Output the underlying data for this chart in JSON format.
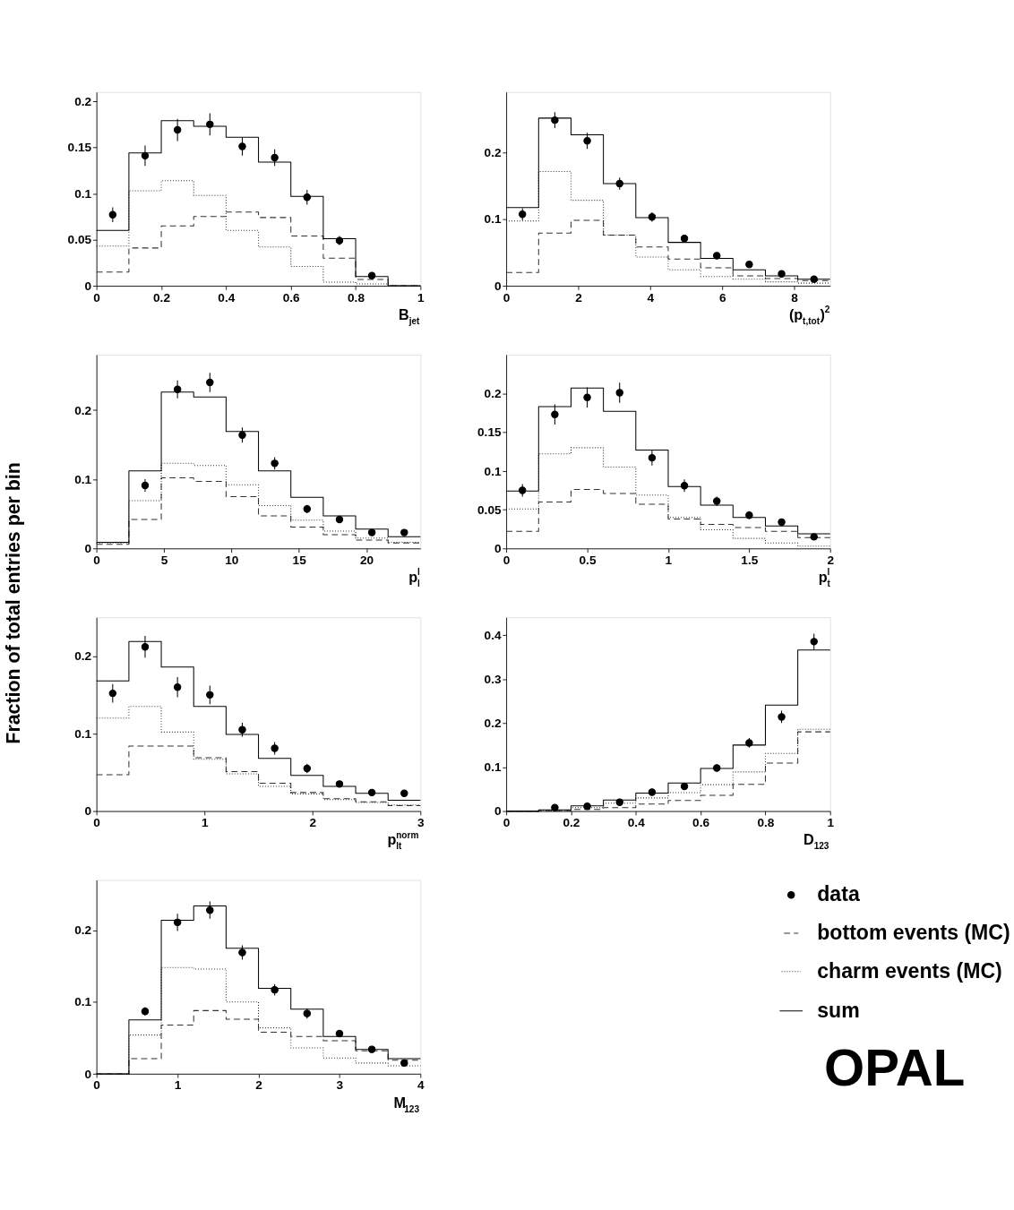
{
  "chart_data": [
    {
      "type": "histogram",
      "xlabel": "B$_{jet}$",
      "bins": [
        0,
        0.1,
        0.2,
        0.3,
        0.4,
        0.5,
        0.6,
        0.7,
        0.8,
        0.9,
        1.0
      ],
      "xlim": [
        0,
        1
      ],
      "xticks": [
        0,
        0.2,
        0.4,
        0.6,
        0.8,
        1
      ],
      "ylim": [
        0,
        0.21
      ],
      "yticks": [
        0,
        0.05,
        0.1,
        0.15,
        0.2
      ],
      "series": [
        {
          "type": "histogram",
          "color": "#333333",
          "line_style": "dashed",
          "values": [
            0.015,
            0.041,
            0.065,
            0.075,
            0.08,
            0.074,
            0.054,
            0.03,
            0.007,
            0
          ]
        },
        {
          "type": "histogram",
          "color": "#111111",
          "line_style": "dotted",
          "values": [
            0.043,
            0.103,
            0.114,
            0.098,
            0.06,
            0.042,
            0.021,
            0.004,
            0.002,
            0
          ]
        },
        {
          "type": "histogram",
          "color": "#000000",
          "line_style": "solid",
          "values": [
            0.06,
            0.144,
            0.179,
            0.173,
            0.161,
            0.134,
            0.097,
            0.051,
            0.01,
            0
          ]
        },
        {
          "type": "scatter",
          "color": "#000000",
          "marker": "circle",
          "x": [
            0.05,
            0.15,
            0.25,
            0.35,
            0.45,
            0.55,
            0.65,
            0.75,
            0.85
          ],
          "values": [
            0.077,
            0.141,
            0.169,
            0.175,
            0.151,
            0.139,
            0.096,
            0.049,
            0.011
          ],
          "errors": [
            0.008,
            0.011,
            0.012,
            0.012,
            0.01,
            0.009,
            0.008,
            0.005,
            0.003
          ]
        }
      ]
    },
    {
      "type": "histogram",
      "xlabel": "(p$_{t,tot}$)$^{2}$",
      "bins": [
        0,
        0.9,
        1.8,
        2.7,
        3.6,
        4.5,
        5.4,
        6.3,
        7.2,
        8.1,
        9.0
      ],
      "xlim": [
        0,
        9
      ],
      "xticks": [
        0,
        2,
        4,
        6,
        8
      ],
      "ylim": [
        0,
        0.29
      ],
      "yticks": [
        0,
        0.1,
        0.2
      ],
      "series": [
        {
          "type": "histogram",
          "color": "#333333",
          "line_style": "dashed",
          "values": [
            0.02,
            0.079,
            0.098,
            0.076,
            0.058,
            0.04,
            0.027,
            0.015,
            0.011,
            0.008
          ]
        },
        {
          "type": "histogram",
          "color": "#111111",
          "line_style": "dotted",
          "values": [
            0.097,
            0.171,
            0.128,
            0.076,
            0.043,
            0.024,
            0.014,
            0.01,
            0.006,
            0.004
          ]
        },
        {
          "type": "histogram",
          "color": "#000000",
          "line_style": "solid",
          "values": [
            0.117,
            0.251,
            0.226,
            0.153,
            0.102,
            0.065,
            0.041,
            0.024,
            0.015,
            0.01
          ]
        },
        {
          "type": "scatter",
          "color": "#000000",
          "marker": "circle",
          "x": [
            0.45,
            1.35,
            2.25,
            3.15,
            4.05,
            4.95,
            5.85,
            6.75,
            7.65,
            8.55
          ],
          "values": [
            0.107,
            0.248,
            0.217,
            0.153,
            0.103,
            0.071,
            0.045,
            0.032,
            0.018,
            0.01
          ],
          "errors": [
            0.009,
            0.012,
            0.012,
            0.009,
            0.007,
            0.005,
            0.004,
            0.003,
            0.003,
            0.002
          ]
        }
      ]
    },
    {
      "type": "histogram",
      "ylabel": "Fraction of total entries per bin",
      "xlabel": "p$^{l}$$_{l}$",
      "bins": [
        0,
        2.4,
        4.8,
        7.2,
        9.6,
        12,
        14.4,
        16.8,
        19.2,
        21.6,
        24
      ],
      "xlim": [
        0,
        24
      ],
      "xticks": [
        0,
        5,
        10,
        15,
        20
      ],
      "ylim": [
        0,
        0.28
      ],
      "yticks": [
        0,
        0.1,
        0.2
      ],
      "series": [
        {
          "type": "histogram",
          "color": "#333333",
          "line_style": "dashed",
          "values": [
            0.006,
            0.042,
            0.102,
            0.097,
            0.075,
            0.047,
            0.031,
            0.02,
            0.012,
            0.008
          ]
        },
        {
          "type": "histogram",
          "color": "#111111",
          "line_style": "dotted",
          "values": [
            0.008,
            0.069,
            0.123,
            0.12,
            0.092,
            0.062,
            0.041,
            0.025,
            0.015,
            0.009
          ]
        },
        {
          "type": "histogram",
          "color": "#000000",
          "line_style": "solid",
          "values": [
            0.009,
            0.112,
            0.226,
            0.219,
            0.169,
            0.112,
            0.074,
            0.047,
            0.028,
            0.017
          ]
        },
        {
          "type": "scatter",
          "color": "#000000",
          "marker": "circle",
          "x": [
            3.6,
            6.0,
            8.4,
            10.8,
            13.2,
            15.6,
            18.0,
            20.4,
            22.8
          ],
          "values": [
            0.091,
            0.23,
            0.24,
            0.164,
            0.123,
            0.057,
            0.042,
            0.023,
            0.023
          ],
          "errors": [
            0.009,
            0.013,
            0.014,
            0.011,
            0.009,
            0.006,
            0.004,
            0.003,
            0.003
          ]
        }
      ]
    },
    {
      "type": "histogram",
      "xlabel": "p$^{l}$$_{t}$",
      "bins": [
        0,
        0.2,
        0.4,
        0.6,
        0.8,
        1.0,
        1.2,
        1.4,
        1.6,
        1.8,
        2.0
      ],
      "xlim": [
        0,
        2
      ],
      "xticks": [
        0,
        0.5,
        1,
        1.5,
        2
      ],
      "ylim": [
        0,
        0.25
      ],
      "yticks": [
        0,
        0.05,
        0.1,
        0.15,
        0.2
      ],
      "series": [
        {
          "type": "histogram",
          "color": "#333333",
          "line_style": "dashed",
          "values": [
            0.022,
            0.06,
            0.076,
            0.071,
            0.057,
            0.038,
            0.031,
            0.027,
            0.022,
            0.014
          ]
        },
        {
          "type": "histogram",
          "color": "#111111",
          "line_style": "dotted",
          "values": [
            0.051,
            0.122,
            0.13,
            0.105,
            0.069,
            0.04,
            0.024,
            0.013,
            0.007,
            0.003
          ]
        },
        {
          "type": "histogram",
          "color": "#000000",
          "line_style": "solid",
          "values": [
            0.074,
            0.183,
            0.207,
            0.177,
            0.127,
            0.08,
            0.056,
            0.04,
            0.029,
            0.019
          ]
        },
        {
          "type": "scatter",
          "color": "#000000",
          "marker": "circle",
          "x": [
            0.1,
            0.3,
            0.5,
            0.7,
            0.9,
            1.1,
            1.3,
            1.5,
            1.7,
            1.9
          ],
          "values": [
            0.075,
            0.173,
            0.195,
            0.201,
            0.117,
            0.081,
            0.061,
            0.043,
            0.034,
            0.015
          ],
          "errors": [
            0.008,
            0.013,
            0.013,
            0.013,
            0.01,
            0.008,
            0.006,
            0.005,
            0.004,
            0.003
          ]
        }
      ]
    },
    {
      "type": "histogram",
      "xlabel": "p$^{norm}$$_{lt}$",
      "bins": [
        0,
        0.3,
        0.6,
        0.9,
        1.2,
        1.5,
        1.8,
        2.1,
        2.4,
        2.7,
        3.0
      ],
      "xlim": [
        0,
        3
      ],
      "xticks": [
        0,
        1,
        2,
        3
      ],
      "ylim": [
        0,
        0.25
      ],
      "yticks": [
        0,
        0.1,
        0.2
      ],
      "series": [
        {
          "type": "histogram",
          "color": "#333333",
          "line_style": "dashed",
          "values": [
            0.047,
            0.084,
            0.084,
            0.069,
            0.051,
            0.036,
            0.024,
            0.016,
            0.012,
            0.007
          ]
        },
        {
          "type": "histogram",
          "color": "#111111",
          "line_style": "dotted",
          "values": [
            0.12,
            0.135,
            0.102,
            0.067,
            0.048,
            0.032,
            0.022,
            0.015,
            0.011,
            0.008
          ]
        },
        {
          "type": "histogram",
          "color": "#000000",
          "line_style": "solid",
          "values": [
            0.168,
            0.219,
            0.186,
            0.135,
            0.099,
            0.068,
            0.046,
            0.032,
            0.023,
            0.014
          ]
        },
        {
          "type": "scatter",
          "color": "#000000",
          "marker": "circle",
          "x": [
            0.15,
            0.45,
            0.75,
            1.05,
            1.35,
            1.65,
            1.95,
            2.25,
            2.55,
            2.85
          ],
          "values": [
            0.152,
            0.212,
            0.16,
            0.15,
            0.105,
            0.081,
            0.055,
            0.035,
            0.024,
            0.023
          ],
          "errors": [
            0.012,
            0.014,
            0.013,
            0.012,
            0.009,
            0.008,
            0.006,
            0.004,
            0.003,
            0.003
          ]
        }
      ]
    },
    {
      "type": "histogram",
      "xlabel": "D$_{123}$",
      "bins": [
        0,
        0.1,
        0.2,
        0.3,
        0.4,
        0.5,
        0.6,
        0.7,
        0.8,
        0.9,
        1.0
      ],
      "xlim": [
        0,
        1
      ],
      "xticks": [
        0,
        0.2,
        0.4,
        0.6,
        0.8,
        1
      ],
      "ylim": [
        0,
        0.44
      ],
      "yticks": [
        0,
        0.1,
        0.2,
        0.3,
        0.4
      ],
      "series": [
        {
          "type": "histogram",
          "color": "#333333",
          "line_style": "dashed",
          "values": [
            0,
            0.001,
            0.004,
            0.008,
            0.016,
            0.024,
            0.036,
            0.061,
            0.109,
            0.18
          ]
        },
        {
          "type": "histogram",
          "color": "#111111",
          "line_style": "dotted",
          "values": [
            0,
            0.002,
            0.008,
            0.018,
            0.03,
            0.042,
            0.06,
            0.089,
            0.131,
            0.186
          ]
        },
        {
          "type": "histogram",
          "color": "#000000",
          "line_style": "solid",
          "values": [
            0,
            0.003,
            0.012,
            0.025,
            0.041,
            0.064,
            0.097,
            0.15,
            0.241,
            0.366
          ]
        },
        {
          "type": "scatter",
          "color": "#000000",
          "marker": "circle",
          "x": [
            0.15,
            0.25,
            0.35,
            0.45,
            0.55,
            0.65,
            0.75,
            0.85,
            0.95
          ],
          "values": [
            0.008,
            0.011,
            0.02,
            0.043,
            0.056,
            0.098,
            0.155,
            0.214,
            0.385
          ],
          "errors": [
            0.003,
            0.003,
            0.004,
            0.005,
            0.006,
            0.008,
            0.011,
            0.014,
            0.018
          ]
        }
      ]
    },
    {
      "type": "histogram",
      "xlabel": "M$_{123}$",
      "bins": [
        0,
        0.4,
        0.8,
        1.2,
        1.6,
        2.0,
        2.4,
        2.8,
        3.2,
        3.6,
        4.0
      ],
      "xlim": [
        0,
        4
      ],
      "xticks": [
        0,
        1,
        2,
        3,
        4
      ],
      "ylim": [
        0,
        0.27
      ],
      "yticks": [
        0,
        0.1,
        0.2
      ],
      "legend": "right",
      "annotations": [
        "OPAL"
      ],
      "series": [
        {
          "type": "scatter",
          "name": "data",
          "color": "#000000",
          "marker": "circle",
          "x": [
            0.6,
            1.0,
            1.4,
            1.8,
            2.2,
            2.6,
            3.0,
            3.4,
            3.8
          ],
          "values": [
            0.087,
            0.211,
            0.228,
            0.169,
            0.117,
            0.084,
            0.056,
            0.034,
            0.015
          ],
          "errors": [
            0.006,
            0.012,
            0.012,
            0.01,
            0.008,
            0.007,
            0.005,
            0.004,
            0.003
          ]
        },
        {
          "type": "histogram",
          "name": "bottom events (MC)",
          "color": "#333333",
          "line_style": "dashed",
          "values": [
            0,
            0.021,
            0.068,
            0.088,
            0.076,
            0.058,
            0.052,
            0.046,
            0.032,
            0.019
          ]
        },
        {
          "type": "histogram",
          "name": "charm events (MC)",
          "color": "#111111",
          "line_style": "dotted",
          "values": [
            0,
            0.054,
            0.148,
            0.146,
            0.1,
            0.064,
            0.036,
            0.022,
            0.015,
            0.011
          ]
        },
        {
          "type": "histogram",
          "name": "sum",
          "color": "#000000",
          "line_style": "solid",
          "values": [
            0,
            0.075,
            0.214,
            0.234,
            0.175,
            0.119,
            0.09,
            0.052,
            0.034,
            0.021
          ]
        }
      ]
    }
  ]
}
